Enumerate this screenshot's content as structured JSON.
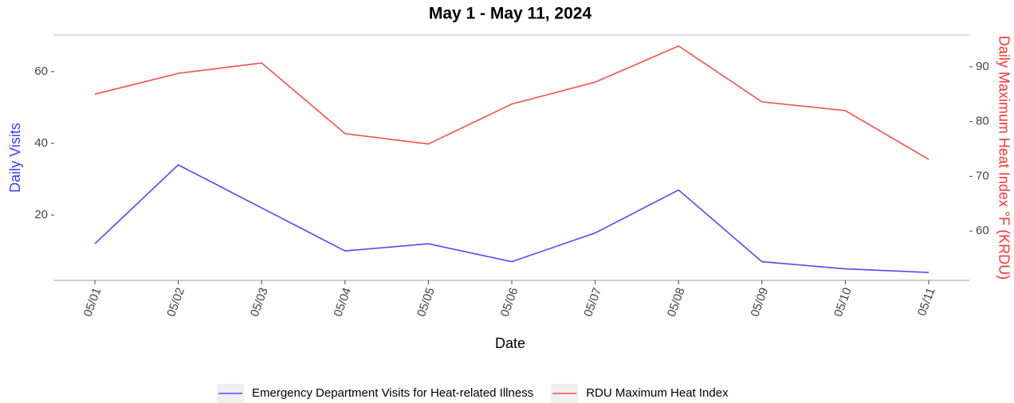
{
  "chart_data": {
    "type": "line",
    "title": "May 1 - May 11, 2024",
    "x_label": "Date",
    "y_label": "Daily Visits",
    "y2_label": "Daily Maximum Heat Index °F (KRDU)",
    "categories": [
      "05/01",
      "05/02",
      "05/03",
      "05/04",
      "05/05",
      "05/06",
      "05/07",
      "05/08",
      "05/09",
      "05/10",
      "05/11"
    ],
    "series": [
      {
        "name": "Emergency Department Visits for Heat-related Illness",
        "color": "#4b4bff",
        "values": [
          12,
          34,
          22,
          10,
          12,
          7,
          15,
          27,
          7,
          5,
          4
        ]
      },
      {
        "name": "RDU Maximum Heat Index",
        "color": "#ff4b4b",
        "axis": "y2",
        "values": [
          85,
          88.8,
          90.7,
          77.8,
          75.9,
          83.2,
          87.2,
          93.8,
          83.6,
          82.0,
          73.1
        ]
      }
    ],
    "ylim": [
      1.8,
      70.2
    ],
    "yticks": [
      20,
      40,
      60
    ],
    "y2lim": [
      51.0,
      95.8
    ],
    "y2ticks": [
      60,
      70,
      80,
      90
    ],
    "grid": false,
    "legend": "bottom"
  }
}
